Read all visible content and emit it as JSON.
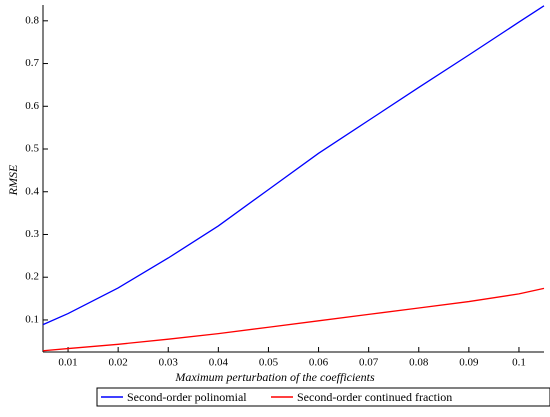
{
  "chart_data": {
    "type": "line",
    "x_label": "Maximum perturbation of the coefficients",
    "y_label": "RMSE",
    "x": [
      0.005,
      0.01,
      0.02,
      0.03,
      0.04,
      0.05,
      0.06,
      0.07,
      0.08,
      0.09,
      0.1,
      0.105
    ],
    "series": [
      {
        "name": "Second-order polinomial",
        "color": "#0000ff",
        "values": [
          0.089,
          0.115,
          0.175,
          0.245,
          0.32,
          0.405,
          0.49,
          0.567,
          0.644,
          0.72,
          0.797,
          0.835
        ]
      },
      {
        "name": "Second-order continued fraction",
        "color": "#ff0000",
        "values": [
          0.028,
          0.033,
          0.043,
          0.055,
          0.068,
          0.083,
          0.098,
          0.113,
          0.128,
          0.143,
          0.161,
          0.174
        ]
      }
    ],
    "xlim": [
      0.005,
      0.105
    ],
    "xticks": [
      0.01,
      0.02,
      0.03,
      0.04,
      0.05,
      0.06,
      0.07,
      0.08,
      0.09,
      0.1
    ],
    "ylim": [
      0.025,
      0.837
    ],
    "yticks": [
      0.1,
      0.2,
      0.3,
      0.4,
      0.5,
      0.6,
      0.7,
      0.8
    ],
    "legend": "bottom"
  }
}
